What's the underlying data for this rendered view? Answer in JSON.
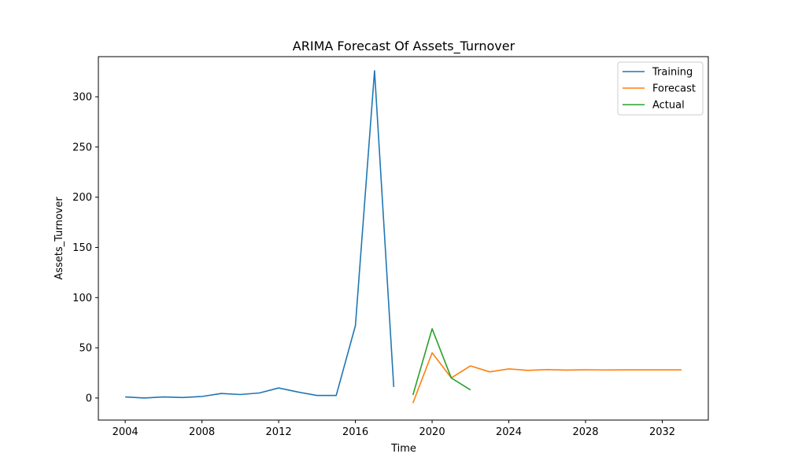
{
  "chart_data": {
    "type": "line",
    "title": "ARIMA Forecast Of Assets_Turnover",
    "xlabel": "Time",
    "ylabel": "Assets_Turnover",
    "xlim": [
      2002.6,
      2034.4
    ],
    "ylim": [
      -22,
      340
    ],
    "x_ticks": [
      2004,
      2008,
      2012,
      2016,
      2020,
      2024,
      2028,
      2032
    ],
    "y_ticks": [
      0,
      50,
      100,
      150,
      200,
      250,
      300
    ],
    "legend_position": "top-right",
    "grid": false,
    "series": [
      {
        "name": "Training",
        "color": "#1f77b4",
        "x": [
          2004,
          2005,
          2006,
          2007,
          2008,
          2009,
          2010,
          2011,
          2012,
          2013,
          2014,
          2015,
          2016,
          2017,
          2018
        ],
        "values": [
          1,
          0,
          1,
          0.5,
          1.5,
          4.5,
          3.5,
          5,
          10,
          6,
          2.5,
          2.5,
          72,
          326,
          11
        ]
      },
      {
        "name": "Forecast",
        "color": "#ff7f0e",
        "x": [
          2019,
          2020,
          2021,
          2022,
          2023,
          2024,
          2025,
          2026,
          2027,
          2028,
          2029,
          2030,
          2031,
          2032,
          2033
        ],
        "values": [
          -5,
          45,
          20,
          32,
          26,
          29,
          27.5,
          28.3,
          27.8,
          28.1,
          27.9,
          28,
          28,
          28,
          28
        ]
      },
      {
        "name": "Actual",
        "color": "#2ca02c",
        "x": [
          2019,
          2020,
          2021,
          2022
        ],
        "values": [
          3,
          69,
          20,
          8
        ]
      }
    ]
  }
}
